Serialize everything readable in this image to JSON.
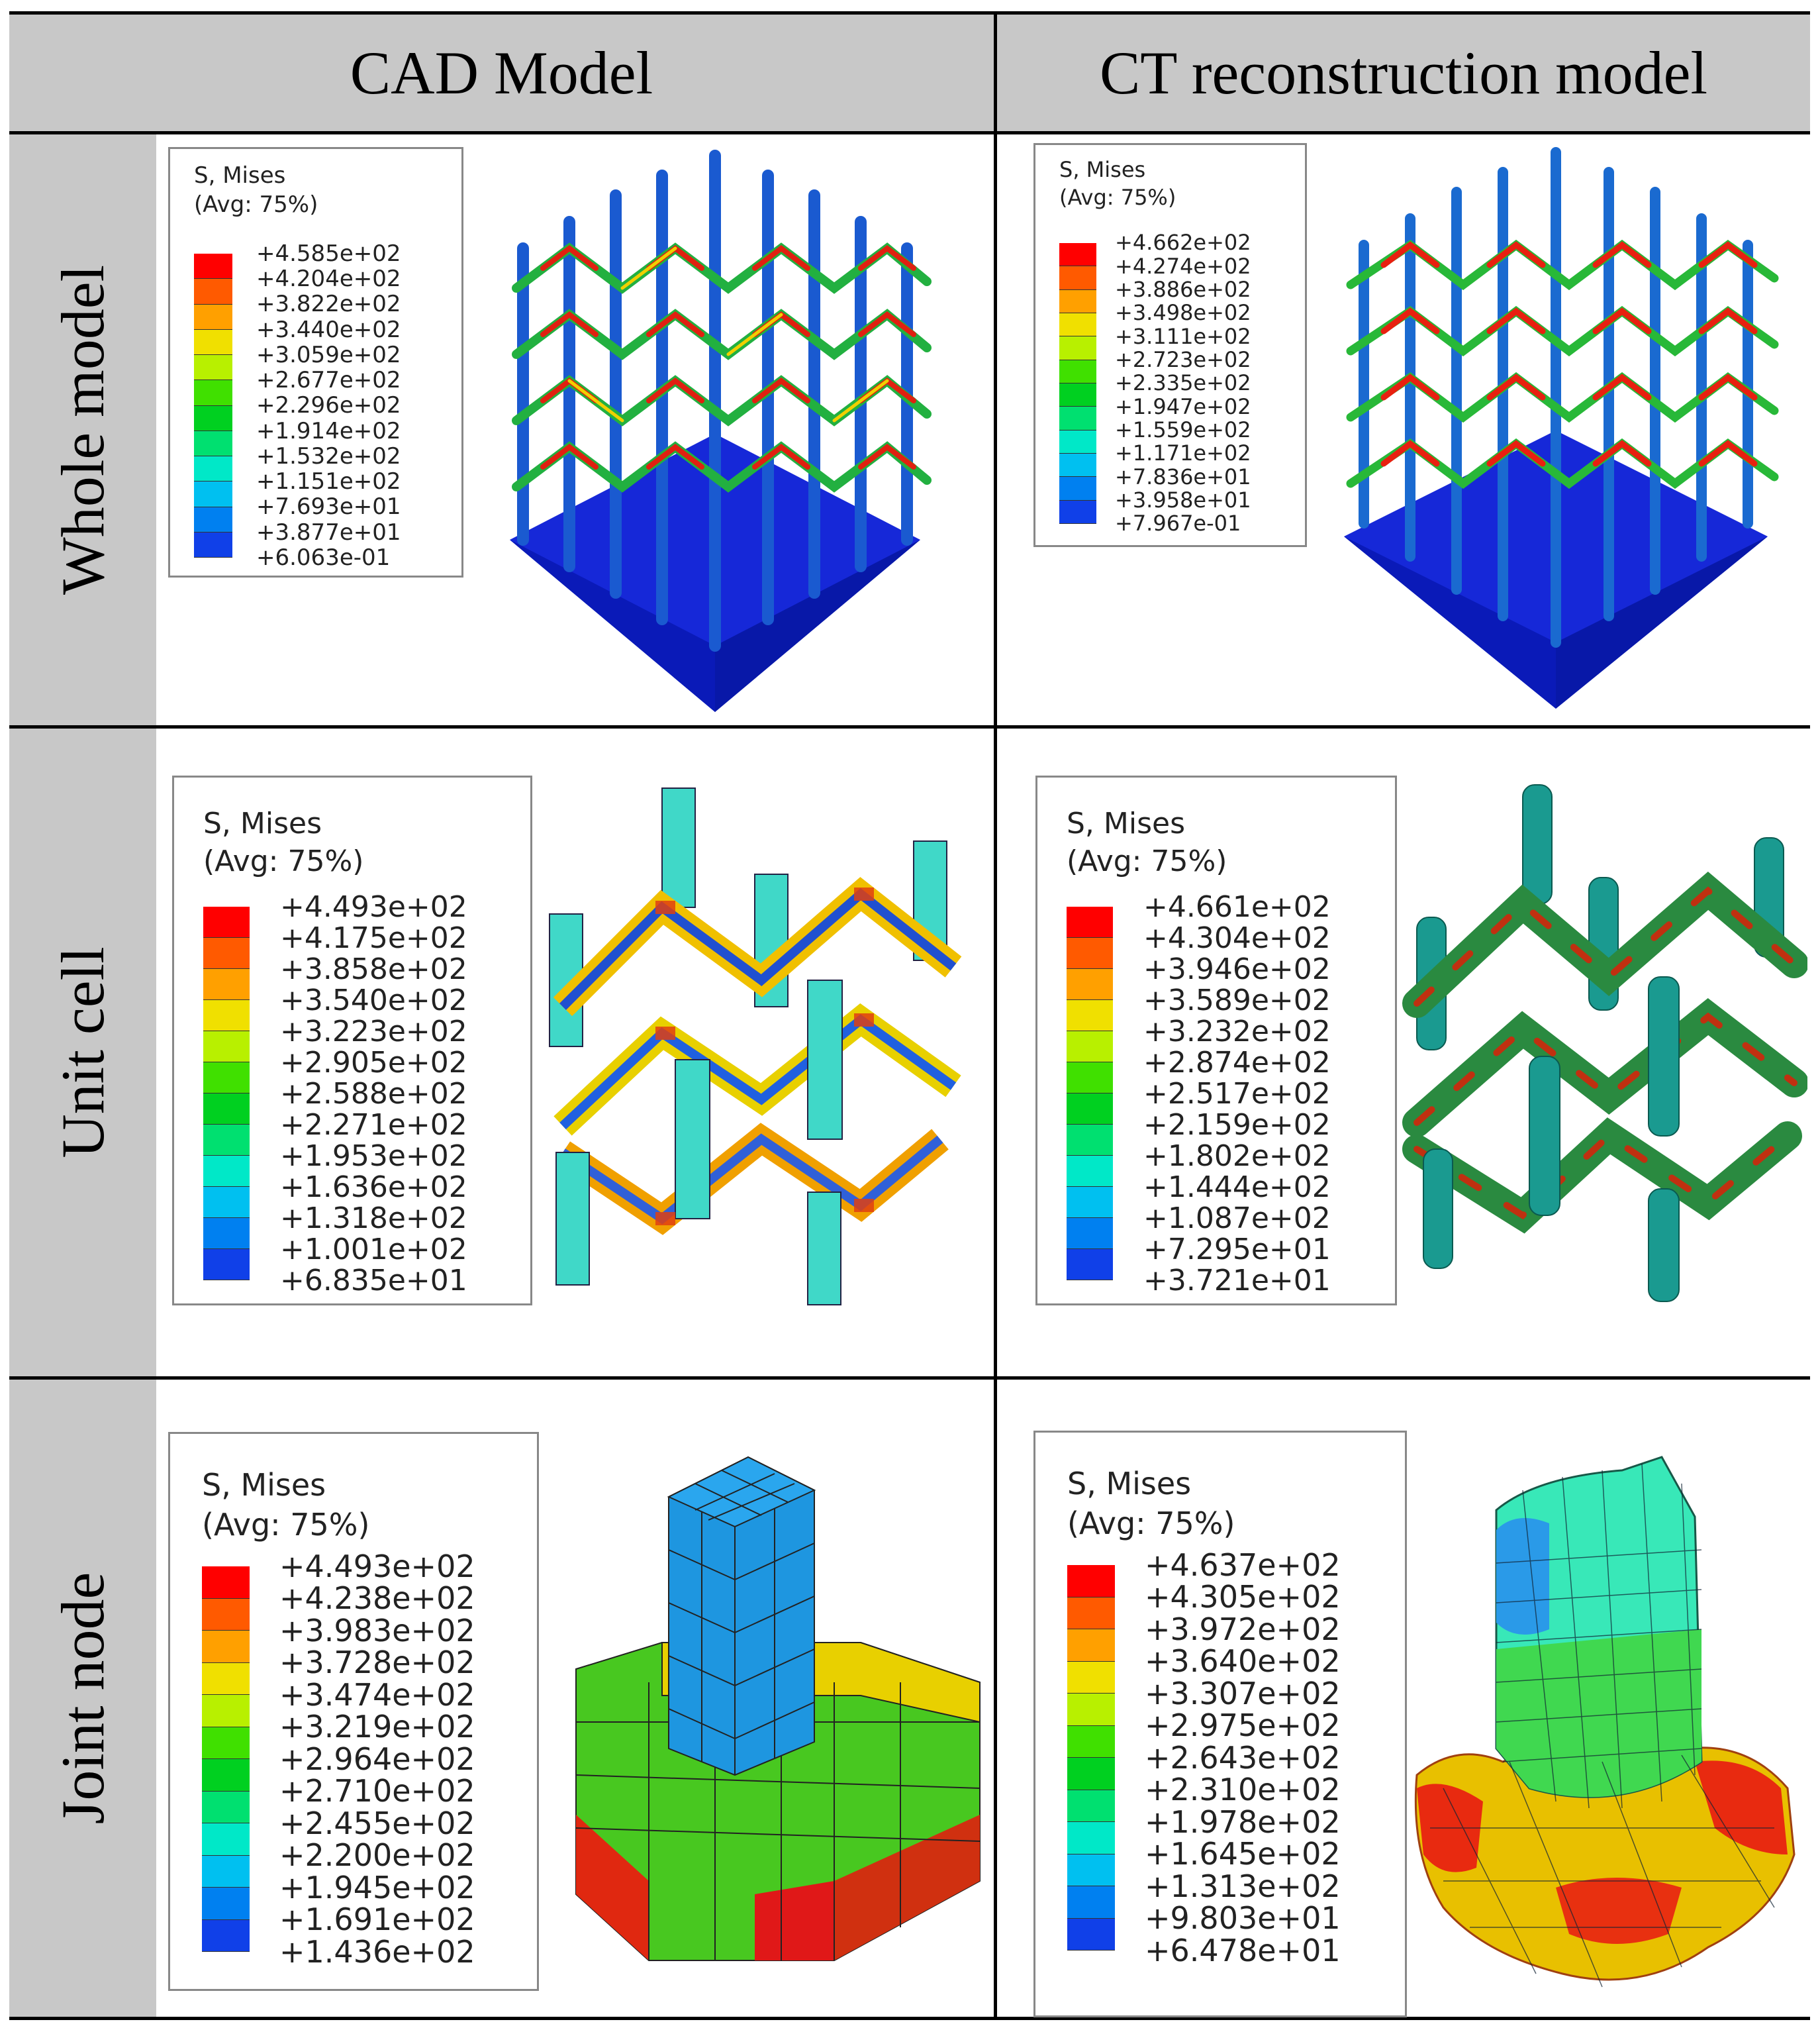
{
  "headers": {
    "col1": "CAD Model",
    "col2": "CT reconstruction model"
  },
  "rows": [
    {
      "label": "Whole model"
    },
    {
      "label": "Unit cell"
    },
    {
      "label": "Joint node"
    }
  ],
  "legend_title": {
    "line1": "S, Mises",
    "line2": "(Avg: 75%)"
  },
  "legend_colors": [
    "#ff0000",
    "#ff5a00",
    "#ffa000",
    "#f0e000",
    "#b8f000",
    "#40e000",
    "#00d020",
    "#00e070",
    "#00e8c8",
    "#00c0f0",
    "#0080f0",
    "#1040e8",
    "#0000e0"
  ],
  "legends": {
    "whole_cad": [
      "+4.585e+02",
      "+4.204e+02",
      "+3.822e+02",
      "+3.440e+02",
      "+3.059e+02",
      "+2.677e+02",
      "+2.296e+02",
      "+1.914e+02",
      "+1.532e+02",
      "+1.151e+02",
      "+7.693e+01",
      "+3.877e+01",
      "+6.063e-01"
    ],
    "whole_ct": [
      "+4.662e+02",
      "+4.274e+02",
      "+3.886e+02",
      "+3.498e+02",
      "+3.111e+02",
      "+2.723e+02",
      "+2.335e+02",
      "+1.947e+02",
      "+1.559e+02",
      "+1.171e+02",
      "+7.836e+01",
      "+3.958e+01",
      "+7.967e-01"
    ],
    "unit_cad": [
      "+4.493e+02",
      "+4.175e+02",
      "+3.858e+02",
      "+3.540e+02",
      "+3.223e+02",
      "+2.905e+02",
      "+2.588e+02",
      "+2.271e+02",
      "+1.953e+02",
      "+1.636e+02",
      "+1.318e+02",
      "+1.001e+02",
      "+6.835e+01"
    ],
    "unit_ct": [
      "+4.661e+02",
      "+4.304e+02",
      "+3.946e+02",
      "+3.589e+02",
      "+3.232e+02",
      "+2.874e+02",
      "+2.517e+02",
      "+2.159e+02",
      "+1.802e+02",
      "+1.444e+02",
      "+1.087e+02",
      "+7.295e+01",
      "+3.721e+01"
    ],
    "joint_cad": [
      "+4.493e+02",
      "+4.238e+02",
      "+3.983e+02",
      "+3.728e+02",
      "+3.474e+02",
      "+3.219e+02",
      "+2.964e+02",
      "+2.710e+02",
      "+2.455e+02",
      "+2.200e+02",
      "+1.945e+02",
      "+1.691e+02",
      "+1.436e+02"
    ],
    "joint_ct": [
      "+4.637e+02",
      "+4.305e+02",
      "+3.972e+02",
      "+3.640e+02",
      "+3.307e+02",
      "+2.975e+02",
      "+2.643e+02",
      "+2.310e+02",
      "+1.978e+02",
      "+1.645e+02",
      "+1.313e+02",
      "+9.803e+01",
      "+6.478e+01"
    ]
  }
}
